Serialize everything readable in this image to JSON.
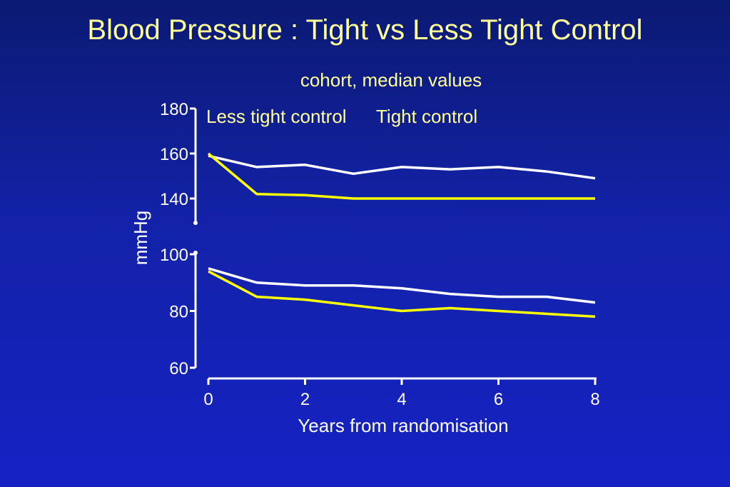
{
  "title": "Blood Pressure : Tight vs Less Tight Control",
  "subtitle": "cohort, median values",
  "colors": {
    "tight": "#ffff00",
    "less_tight": "#ffffff",
    "text_accent": "#ffff99"
  },
  "chart_data": {
    "type": "line",
    "title": "Blood Pressure : Tight vs Less Tight Control",
    "subtitle": "cohort, median values",
    "xlabel": "Years from randomisation",
    "ylabel": "mmHg",
    "x_ticks": [
      "0",
      "2",
      "4",
      "6",
      "8"
    ],
    "y_ticks_upper": [
      "180",
      "160",
      "140"
    ],
    "y_ticks_lower": [
      "100",
      "80",
      "60"
    ],
    "xlim": [
      0,
      8
    ],
    "ylim_upper": [
      130,
      180
    ],
    "ylim_lower": [
      60,
      100
    ],
    "axis_break": true,
    "legend": {
      "labels": [
        "Less tight control",
        "Tight control"
      ],
      "placement": "top-left"
    },
    "x": [
      0,
      1,
      2,
      3,
      4,
      5,
      6,
      7,
      8
    ],
    "series": [
      {
        "name": "Less tight control",
        "panel": "upper",
        "color": "#ffffff",
        "values": [
          159,
          154,
          155,
          151,
          154,
          153,
          154,
          152,
          149
        ]
      },
      {
        "name": "Tight control",
        "panel": "upper",
        "color": "#ffff00",
        "values": [
          160,
          142,
          141.5,
          140,
          140,
          140,
          140,
          140,
          140
        ]
      },
      {
        "name": "Less tight control",
        "panel": "lower",
        "color": "#ffffff",
        "values": [
          95,
          90,
          89,
          89,
          88,
          86,
          85,
          85,
          83
        ]
      },
      {
        "name": "Tight control",
        "panel": "lower",
        "color": "#ffff00",
        "values": [
          94,
          85,
          84,
          82,
          80,
          81,
          80,
          79,
          78
        ]
      }
    ]
  }
}
